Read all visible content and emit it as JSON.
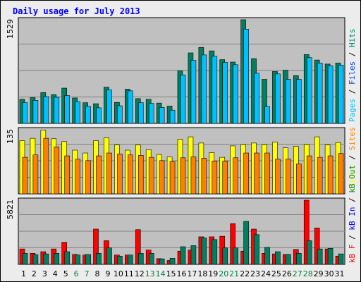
{
  "title": "Daily usage for July 2013",
  "colors": {
    "frame_bg": "#ececec",
    "frame_border": "#000000",
    "plot_bg": "#c0c0c0",
    "grid": "#808080",
    "title": "#0000ff",
    "weekday_label": "#000000",
    "weekend_label": "#008040",
    "slash": "#000000"
  },
  "chart_data": [
    {
      "type": "bar",
      "panel": "pages-files-hits",
      "ymax_label": "1529",
      "ymax": 1529,
      "grid": true,
      "categories": [
        "1",
        "2",
        "3",
        "4",
        "5",
        "6",
        "7",
        "8",
        "9",
        "10",
        "11",
        "12",
        "13",
        "14",
        "15",
        "16",
        "17",
        "18",
        "19",
        "20",
        "21",
        "22",
        "23",
        "24",
        "25",
        "26",
        "27",
        "28",
        "29",
        "30",
        "31"
      ],
      "weekend": [
        false,
        false,
        false,
        false,
        false,
        true,
        true,
        false,
        false,
        false,
        false,
        false,
        true,
        true,
        false,
        false,
        false,
        false,
        false,
        true,
        true,
        false,
        false,
        false,
        false,
        false,
        true,
        true,
        false,
        false,
        false
      ],
      "legend": [
        {
          "label": "Pages",
          "color": "#00c0ff"
        },
        {
          "label": "Files",
          "color": "#0040ff"
        },
        {
          "label": "Hits",
          "color": "#008060"
        }
      ],
      "series": [
        {
          "name": "Hits",
          "color": "#008060",
          "values": [
            356,
            380,
            455,
            425,
            520,
            375,
            305,
            290,
            535,
            310,
            505,
            365,
            355,
            300,
            255,
            775,
            1040,
            1120,
            1070,
            940,
            905,
            1529,
            955,
            650,
            765,
            785,
            705,
            1015,
            935,
            875,
            890
          ]
        },
        {
          "name": "Pages",
          "color": "#00c0ff",
          "values": [
            305,
            340,
            395,
            385,
            410,
            320,
            250,
            230,
            495,
            260,
            480,
            305,
            295,
            235,
            195,
            715,
            930,
            1010,
            990,
            900,
            865,
            1390,
            740,
            250,
            730,
            650,
            650,
            970,
            890,
            850,
            860
          ]
        }
      ]
    },
    {
      "type": "bar",
      "panel": "visits-sites",
      "ymax_label": "135",
      "ymax": 135,
      "grid": true,
      "categories": [
        "1",
        "2",
        "3",
        "4",
        "5",
        "6",
        "7",
        "8",
        "9",
        "10",
        "11",
        "12",
        "13",
        "14",
        "15",
        "16",
        "17",
        "18",
        "19",
        "20",
        "21",
        "22",
        "23",
        "24",
        "25",
        "26",
        "27",
        "28",
        "29",
        "30",
        "31"
      ],
      "legend": [
        {
          "label": "Visits",
          "color": "#ffff00"
        },
        {
          "label": "Sites",
          "color": "#ff8000"
        }
      ],
      "series": [
        {
          "name": "Visits",
          "color": "#ffff00",
          "values": [
            112,
            117,
            134,
            116,
            110,
            92,
            86,
            112,
            118,
            103,
            92,
            103,
            93,
            83,
            78,
            115,
            120,
            107,
            87,
            77,
            101,
            104,
            107,
            104,
            109,
            97,
            100,
            104,
            120,
            103,
            108
          ]
        },
        {
          "name": "Sites",
          "color": "#ff8000",
          "values": [
            77,
            82,
            117,
            99,
            80,
            73,
            70,
            80,
            86,
            84,
            82,
            81,
            77,
            70,
            68,
            76,
            78,
            75,
            69,
            69,
            76,
            86,
            86,
            86,
            73,
            73,
            63,
            80,
            77,
            80,
            85
          ]
        }
      ]
    },
    {
      "type": "bar",
      "panel": "kb-f-in-out",
      "ymax_label": "5821",
      "ymax": 5821,
      "grid": true,
      "categories": [
        "1",
        "2",
        "3",
        "4",
        "5",
        "6",
        "7",
        "8",
        "9",
        "10",
        "11",
        "12",
        "13",
        "14",
        "15",
        "16",
        "17",
        "18",
        "19",
        "20",
        "21",
        "22",
        "23",
        "24",
        "25",
        "26",
        "27",
        "28",
        "29",
        "30",
        "31"
      ],
      "legend": [
        {
          "label": "kB F",
          "color": "#ff0000"
        },
        {
          "label": "kB In",
          "color": "#0000ff"
        },
        {
          "label": "kB Out",
          "color": "#008060"
        }
      ],
      "series": [
        {
          "name": "kB F",
          "color": "#ff0000",
          "values": [
            1400,
            1000,
            1150,
            1400,
            2000,
            900,
            850,
            3200,
            2150,
            850,
            850,
            3150,
            1300,
            520,
            350,
            1200,
            1300,
            2500,
            2500,
            2550,
            3700,
            1200,
            3200,
            1000,
            950,
            900,
            1350,
            5821,
            3300,
            1400,
            750
          ]
        },
        {
          "name": "kB Out",
          "color": "#008060",
          "values": [
            1000,
            880,
            950,
            1000,
            1150,
            850,
            900,
            1000,
            1500,
            750,
            850,
            1000,
            1000,
            500,
            550,
            1600,
            1700,
            2400,
            2250,
            1500,
            1500,
            3900,
            2700,
            1550,
            1150,
            900,
            1000,
            2150,
            1400,
            1450,
            950
          ]
        }
      ]
    }
  ]
}
